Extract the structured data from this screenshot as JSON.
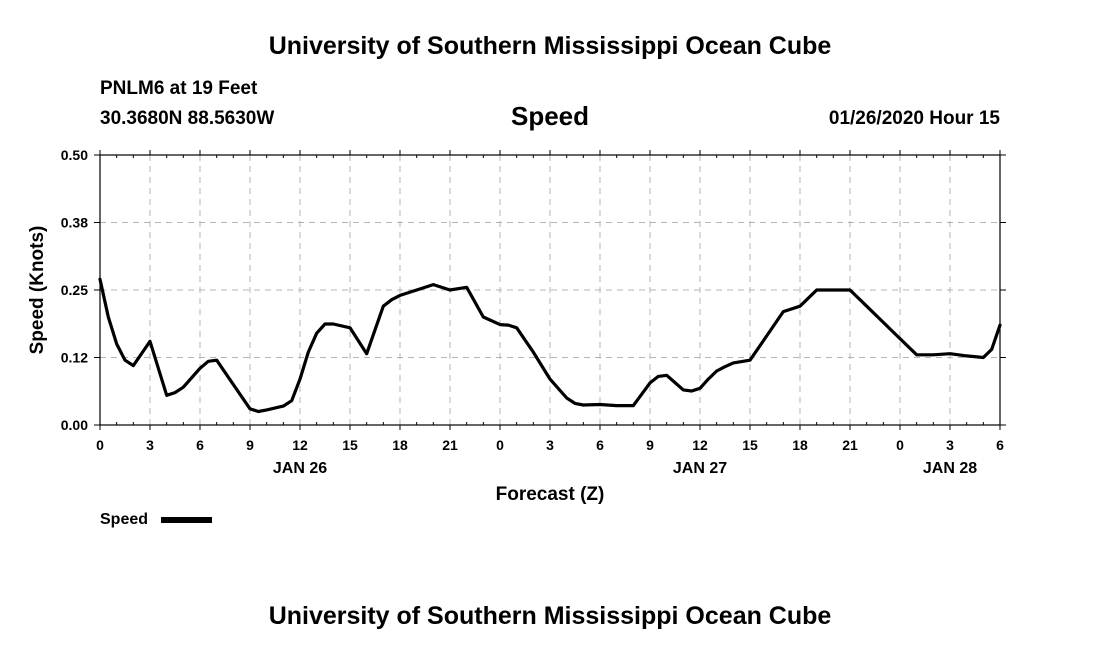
{
  "header": {
    "title": "University of Southern Mississippi Ocean Cube",
    "station": "PNLM6 at 19 Feet",
    "location": "30.3680N 88.5630W",
    "variable": "Speed",
    "datetime": "01/26/2020 Hour 15"
  },
  "footer": {
    "title": "University of Southern Mississippi Ocean Cube"
  },
  "legend": {
    "label": "Speed"
  },
  "colors": {
    "line": "#000000",
    "grid": "#b4b4b4",
    "background": "#ffffff"
  },
  "chart_data": {
    "type": "line",
    "title": "Speed",
    "xlabel": "Forecast (Z)",
    "ylabel": "Speed (Knots)",
    "xlim": [
      0,
      54
    ],
    "ylim": [
      0,
      0.5
    ],
    "yticks": [
      0.0,
      0.125,
      0.25,
      0.375,
      0.5
    ],
    "ytick_labels": [
      "0.00",
      "0.12",
      "0.25",
      "0.38",
      "0.50"
    ],
    "xticks": [
      0,
      3,
      6,
      9,
      12,
      15,
      18,
      21,
      24,
      27,
      30,
      33,
      36,
      39,
      42,
      45,
      48,
      51,
      54
    ],
    "xtick_labels": [
      "0",
      "3",
      "6",
      "9",
      "12",
      "15",
      "18",
      "21",
      "0",
      "3",
      "6",
      "9",
      "12",
      "15",
      "18",
      "21",
      "0",
      "3",
      "6"
    ],
    "date_labels": [
      {
        "x": 12,
        "label": "JAN 26"
      },
      {
        "x": 36,
        "label": "JAN 27"
      },
      {
        "x": 51,
        "label": "JAN 28"
      }
    ],
    "series": [
      {
        "name": "Speed",
        "x": [
          0,
          0.5,
          1,
          1.5,
          2,
          3,
          4,
          4.5,
          5,
          6,
          6.5,
          7,
          8,
          9,
          9.5,
          10,
          11,
          11.5,
          12,
          12.5,
          13,
          13.5,
          14,
          15,
          16,
          17,
          17.5,
          18,
          19,
          20,
          21,
          22,
          23,
          24,
          24.5,
          25,
          26,
          27,
          28,
          28.5,
          29,
          30,
          31,
          32,
          33,
          33.5,
          34,
          35,
          35.5,
          36,
          36.5,
          37,
          37.5,
          38,
          39,
          40,
          41,
          42,
          43,
          44,
          45,
          46,
          47,
          48,
          49,
          50,
          51,
          52,
          53,
          53.5,
          54
        ],
        "values": [
          0.27,
          0.2,
          0.15,
          0.12,
          0.11,
          0.155,
          0.055,
          0.06,
          0.07,
          0.105,
          0.118,
          0.12,
          0.075,
          0.03,
          0.025,
          0.028,
          0.035,
          0.045,
          0.085,
          0.135,
          0.17,
          0.187,
          0.187,
          0.18,
          0.132,
          0.22,
          0.232,
          0.24,
          0.25,
          0.26,
          0.25,
          0.255,
          0.2,
          0.186,
          0.185,
          0.18,
          0.135,
          0.085,
          0.05,
          0.04,
          0.037,
          0.038,
          0.036,
          0.036,
          0.078,
          0.09,
          0.092,
          0.065,
          0.063,
          0.068,
          0.085,
          0.1,
          0.108,
          0.115,
          0.12,
          0.165,
          0.21,
          0.22,
          0.25,
          0.25,
          0.25,
          0.22,
          0.19,
          0.16,
          0.13,
          0.13,
          0.132,
          0.128,
          0.125,
          0.14,
          0.185
        ]
      }
    ]
  }
}
